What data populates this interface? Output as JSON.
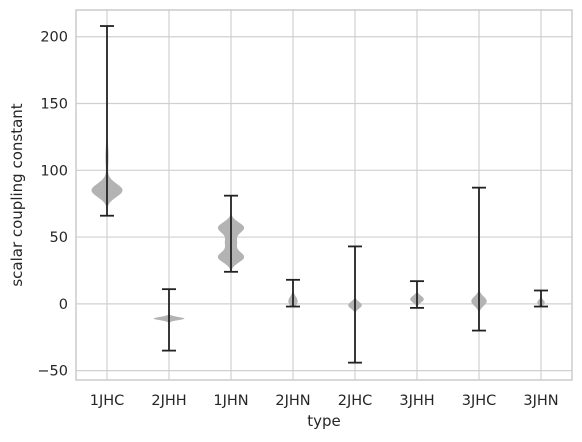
{
  "chart_data": {
    "type": "violin",
    "xlabel": "type",
    "ylabel": "scalar coupling constant",
    "ylim": [
      -57,
      220
    ],
    "yticks": [
      -50,
      0,
      50,
      100,
      150,
      200
    ],
    "yticklabels": [
      "−50",
      "0",
      "50",
      "100",
      "150",
      "200"
    ],
    "grid": true,
    "colors": {
      "violin": "#b3b3b3",
      "whisker": "#222222",
      "grid": "#d0d0d0",
      "frame": "#cccccc"
    },
    "categories": [
      "1JHC",
      "2JHH",
      "1JHN",
      "2JHN",
      "2JHC",
      "3JHH",
      "3JHC",
      "3JHN"
    ],
    "violins": [
      {
        "name": "1JHC",
        "min": 66,
        "max": 208,
        "peaks": [
          {
            "y": 85,
            "w": 0.5,
            "sd": 5
          },
          {
            "y": 110,
            "w": 0.05,
            "sd": 10
          }
        ]
      },
      {
        "name": "2JHH",
        "min": -35,
        "max": 11,
        "peaks": [
          {
            "y": -11,
            "w": 0.5,
            "sd": 1.2
          }
        ]
      },
      {
        "name": "1JHN",
        "min": 24,
        "max": 81,
        "peaks": [
          {
            "y": 57,
            "w": 0.42,
            "sd": 4
          },
          {
            "y": 35,
            "w": 0.42,
            "sd": 4
          },
          {
            "y": 46,
            "w": 0.18,
            "sd": 4
          }
        ]
      },
      {
        "name": "2JHN",
        "min": -2,
        "max": 18,
        "peaks": [
          {
            "y": 2,
            "w": 0.15,
            "sd": 3.5
          }
        ]
      },
      {
        "name": "2JHC",
        "min": -44,
        "max": 43,
        "peaks": [
          {
            "y": -1,
            "w": 0.22,
            "sd": 2.5
          }
        ]
      },
      {
        "name": "3JHH",
        "min": -3,
        "max": 17,
        "peaks": [
          {
            "y": 3.5,
            "w": 0.22,
            "sd": 2.5
          }
        ]
      },
      {
        "name": "3JHC",
        "min": -20,
        "max": 87,
        "peaks": [
          {
            "y": 2,
            "w": 0.25,
            "sd": 3.5
          }
        ]
      },
      {
        "name": "3JHN",
        "min": -2,
        "max": 10,
        "peaks": [
          {
            "y": 1,
            "w": 0.12,
            "sd": 2
          }
        ]
      }
    ]
  }
}
